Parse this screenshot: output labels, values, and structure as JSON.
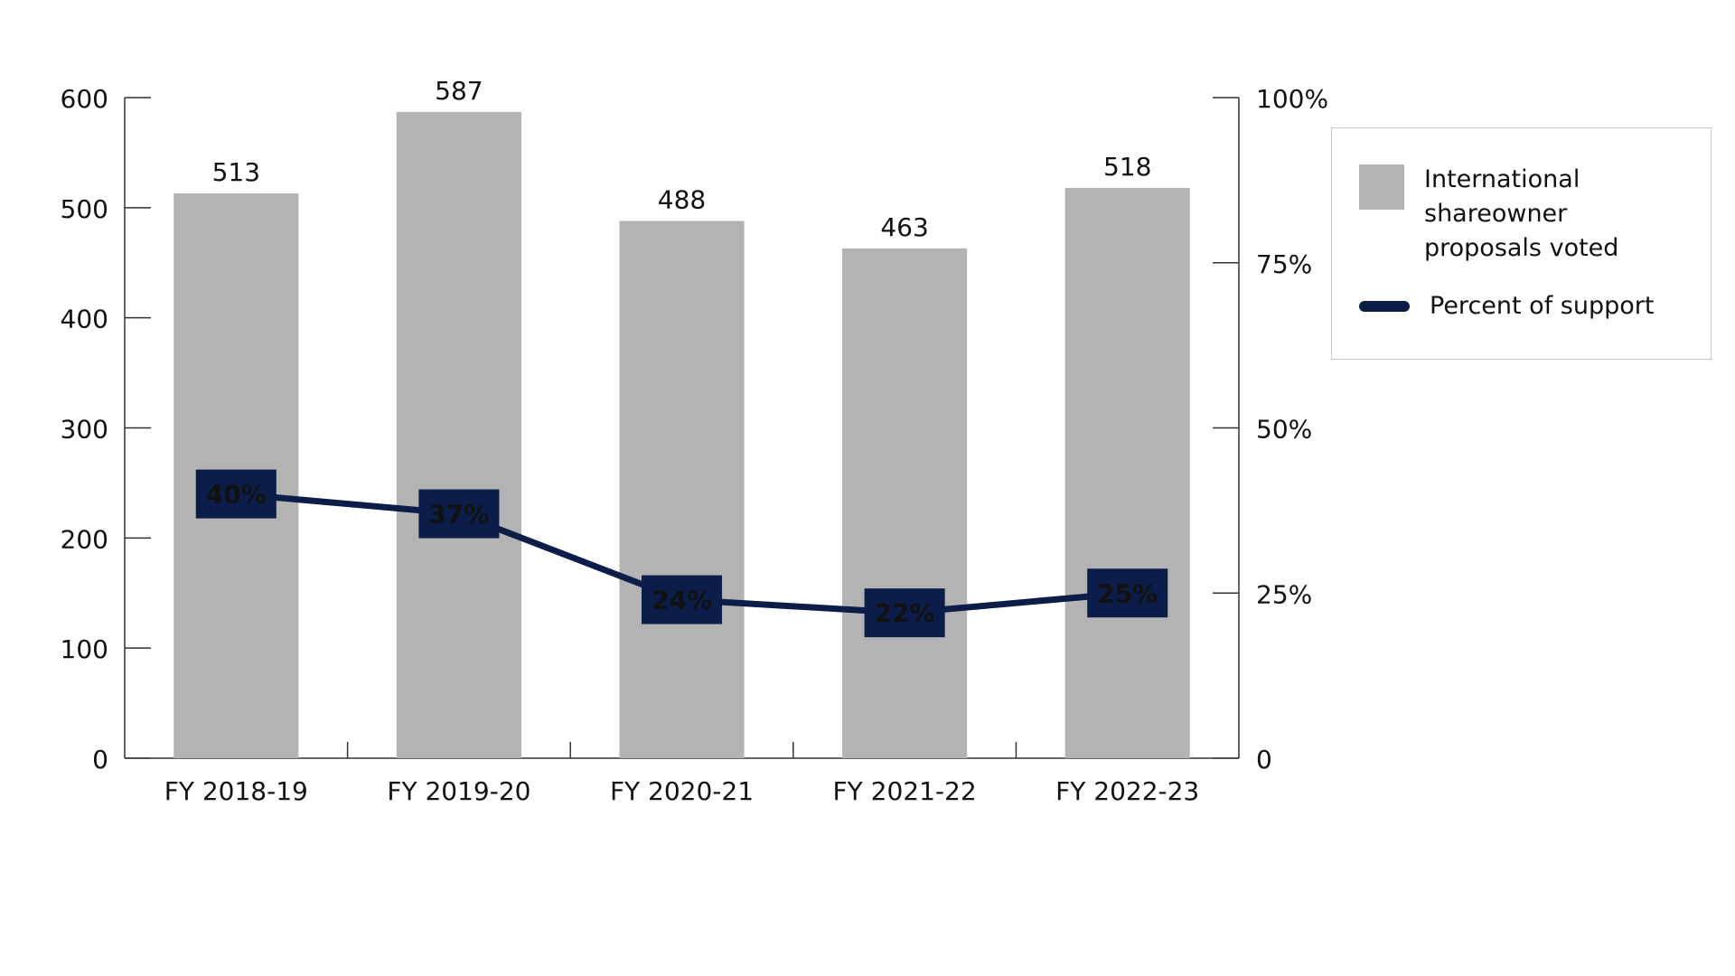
{
  "chart_data": {
    "type": "combo",
    "categories": [
      "FY 2018-19",
      "FY 2019-20",
      "FY 2020-21",
      "FY 2021-22",
      "FY 2022-23"
    ],
    "series": [
      {
        "name": "International shareowner proposals voted",
        "type": "bar",
        "color": "#b3b3b3",
        "values": [
          513,
          587,
          488,
          463,
          518
        ]
      },
      {
        "name": "Percent of support",
        "type": "line",
        "axis": "y2",
        "color": "#0c1d4a",
        "values": [
          40,
          37,
          24,
          22,
          25
        ],
        "value_labels": [
          "40%",
          "37%",
          "24%",
          "22%",
          "25%"
        ]
      }
    ],
    "ylim": [
      0,
      600
    ],
    "yticks": [
      0,
      100,
      200,
      300,
      400,
      500,
      600
    ],
    "y2lim": [
      0,
      100
    ],
    "y2ticks": [
      0,
      {
        "value": 25,
        "label": "25%"
      },
      {
        "value": 50,
        "label": "50%"
      },
      {
        "value": 75,
        "label": "75%"
      },
      {
        "value": 100,
        "label": "100%"
      }
    ],
    "legend": "right"
  }
}
